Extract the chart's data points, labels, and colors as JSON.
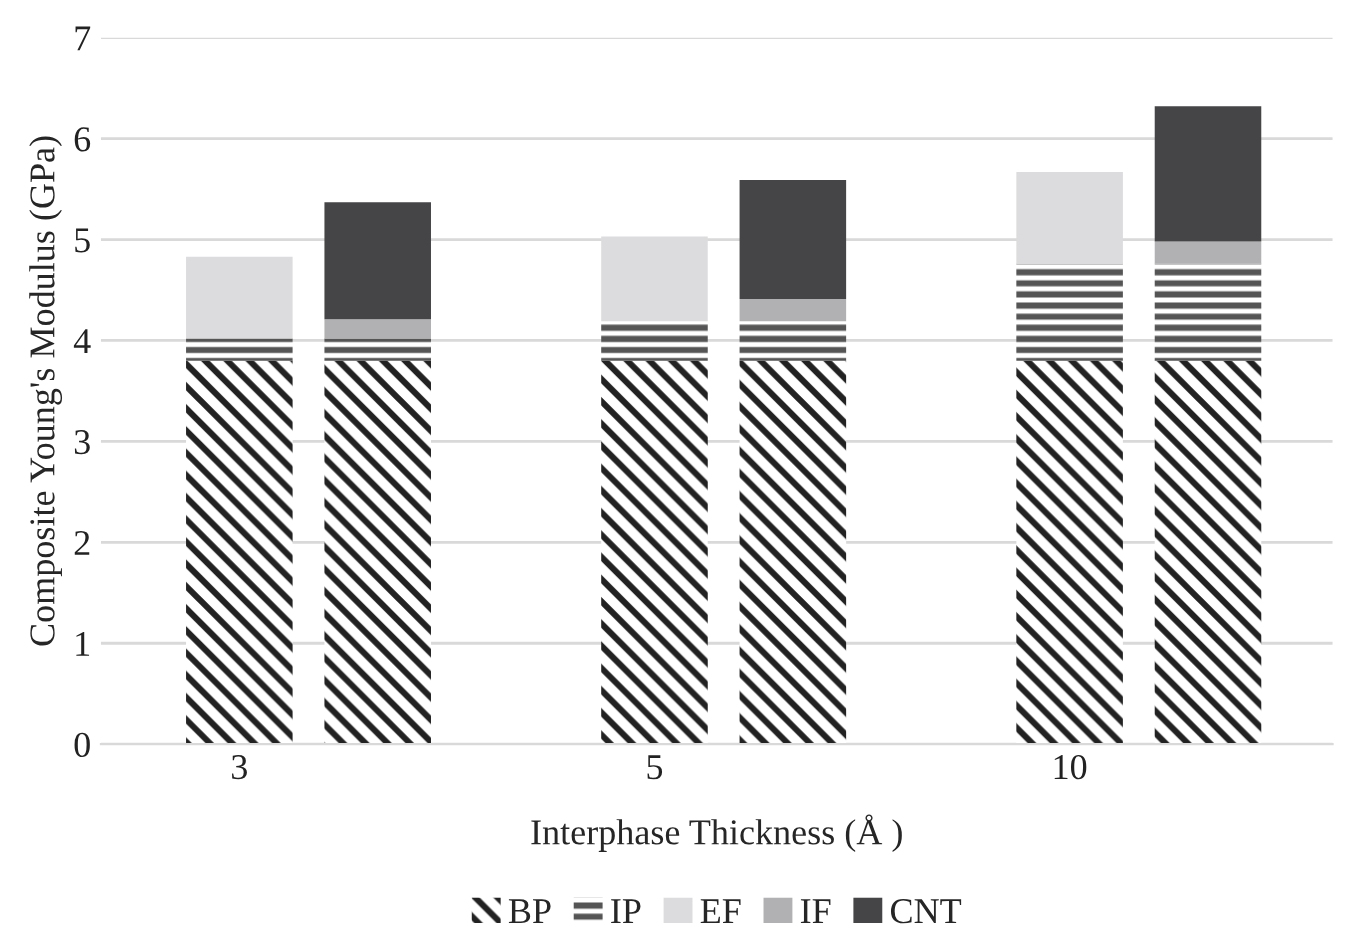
{
  "chart_data": {
    "type": "bar",
    "stacked": true,
    "xlabel": "Interphase Thickness (Å )",
    "ylabel": "Composite Young's Modulus (GPa)",
    "categories": [
      "3",
      null,
      "5",
      null,
      "10",
      null
    ],
    "ylim": [
      0,
      7
    ],
    "yticks": [
      0,
      1,
      2,
      3,
      4,
      5,
      6,
      7
    ],
    "grid": "y",
    "legend": "bottom",
    "series": [
      {
        "name": "BP",
        "color": "#222222",
        "values": [
          3.8,
          3.8,
          3.8,
          3.8,
          3.8,
          3.8
        ]
      },
      {
        "name": "IP",
        "color": "#555555",
        "values": [
          0.22,
          0.22,
          0.39,
          0.39,
          0.96,
          0.96
        ]
      },
      {
        "name": "EF",
        "color": "#dcdcde",
        "values": [
          0.81,
          null,
          0.84,
          null,
          0.91,
          null
        ]
      },
      {
        "name": "IF",
        "color": "#b1b1b4",
        "values": [
          null,
          0.19,
          null,
          0.22,
          null,
          0.22
        ]
      },
      {
        "name": "CNT",
        "color": "#454547",
        "values": [
          null,
          1.16,
          null,
          1.18,
          null,
          1.34
        ]
      }
    ]
  }
}
